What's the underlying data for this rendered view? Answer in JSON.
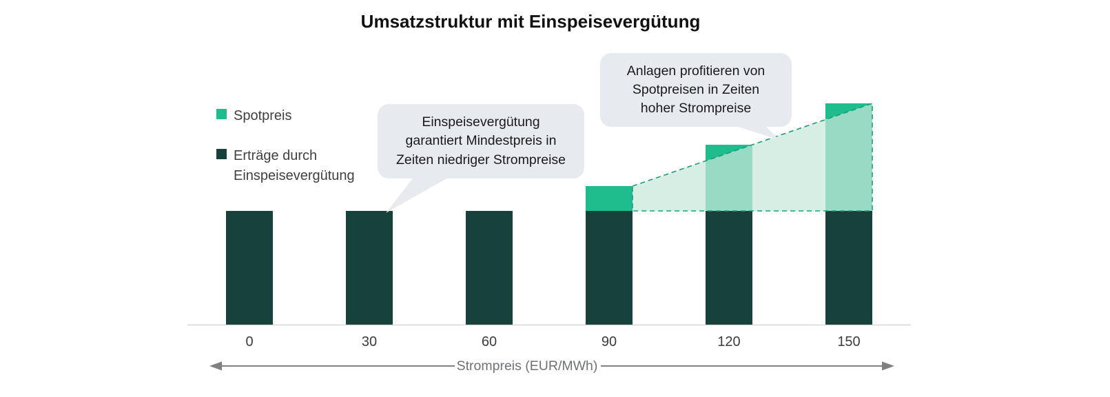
{
  "title": "Umsatzstruktur mit Einspeisevergütung",
  "legend": {
    "items": [
      {
        "label": "Spotpreis",
        "color": "#1fbc8e"
      },
      {
        "label": "Erträge durch Einspeisevergütung",
        "color": "#17423c"
      }
    ]
  },
  "annotations": {
    "callout_low": "Einspeisevergütung\ngarantiert Mindestpreis in\nZeiten niedriger Strompreise",
    "callout_high": "Anlagen profitieren von\nSpotpreisen in Zeiten\nhoher Strompreise"
  },
  "axis": {
    "xlabel": "Strompreis (EUR/MWh)"
  },
  "chart_data": {
    "type": "bar",
    "stacked": true,
    "title": "Umsatzstruktur mit Einspeisevergütung",
    "xlabel": "Strompreis (EUR/MWh)",
    "ylabel": "",
    "y_axis_visible": false,
    "grid": false,
    "legend_position": "left",
    "categories": [
      "0",
      "30",
      "60",
      "90",
      "120",
      "150"
    ],
    "series": [
      {
        "name": "Erträge durch Einspeisevergütung",
        "color": "#17423c",
        "values": [
          55,
          55,
          55,
          55,
          55,
          55
        ]
      },
      {
        "name": "Spotpreis",
        "color": "#1fbc8e",
        "values": [
          0,
          0,
          0,
          12,
          32,
          52
        ]
      }
    ],
    "ylim": [
      0,
      110
    ],
    "overlay": {
      "description": "dashed trapezoid marking spot-price upside above the feed-in floor between 90 and 150 EUR/MWh",
      "fill": "rgba(200,231,217,0.72)",
      "stroke": "#169d7c"
    }
  },
  "colors": {
    "baseline": "#d9d9d9",
    "arrow": "#808080",
    "tick_text": "#3c3c3c",
    "bubble_bg": "#e7eaee"
  }
}
